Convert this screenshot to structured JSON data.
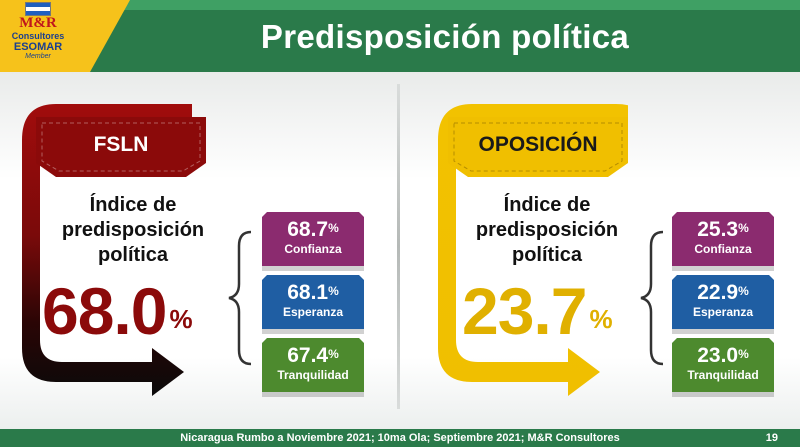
{
  "header": {
    "title": "Predisposición política",
    "logo": {
      "brand": "M&R",
      "subtitle": "Consultores",
      "association": "ESOMAR",
      "member": "Member"
    }
  },
  "panels": [
    {
      "party": "FSLN",
      "accent": "#8b0a0a",
      "index_label_lines": [
        "Índice de",
        "predisposición",
        "política"
      ],
      "index_value": "68.0",
      "index_unit": "%",
      "metrics": [
        {
          "value": "68.7",
          "unit": "%",
          "label": "Confianza",
          "color": "#8b2b6f"
        },
        {
          "value": "68.1",
          "unit": "%",
          "label": "Esperanza",
          "color": "#1f5ea3"
        },
        {
          "value": "67.4",
          "unit": "%",
          "label": "Tranquilidad",
          "color": "#4d8a2e"
        }
      ]
    },
    {
      "party": "OPOSICIÓN",
      "accent": "#e8b400",
      "index_label_lines": [
        "Índice de",
        "predisposición",
        "política"
      ],
      "index_value": "23.7",
      "index_unit": "%",
      "metrics": [
        {
          "value": "25.3",
          "unit": "%",
          "label": "Confianza",
          "color": "#8b2b6f"
        },
        {
          "value": "22.9",
          "unit": "%",
          "label": "Esperanza",
          "color": "#1f5ea3"
        },
        {
          "value": "23.0",
          "unit": "%",
          "label": "Tranquilidad",
          "color": "#4d8a2e"
        }
      ]
    }
  ],
  "footer": {
    "source": "Nicaragua Rumbo a Noviembre 2021; 10ma Ola; Septiembre 2021; M&R Consultores",
    "page": "19"
  }
}
